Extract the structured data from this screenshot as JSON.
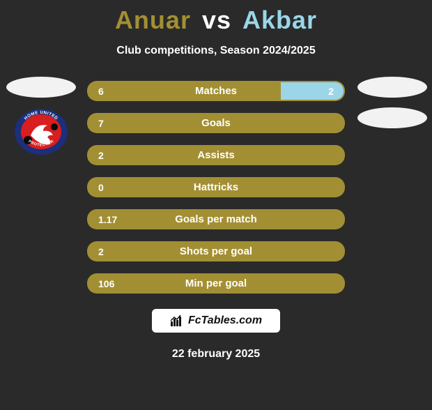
{
  "header": {
    "player1": "Anuar",
    "vs": "vs",
    "player2": "Akbar",
    "player1_color": "#a38f33",
    "player2_color": "#9ad6e8"
  },
  "subtitle": "Club competitions, Season 2024/2025",
  "colors": {
    "p1_fill": "#a38f33",
    "p2_fill": "#9ad6e8",
    "row_border": "#a38f33",
    "background": "#2a2a2a"
  },
  "side_left": {
    "crest": {
      "show": true,
      "top_text": "HOME UNITED",
      "bottom_text": "PROTECTOR",
      "outer_color": "#1b2f7a",
      "inner_color": "#d81e1e",
      "dragon_color": "#ffffff",
      "ball_color": "#0a0a0a"
    }
  },
  "side_right": {
    "crest": {
      "show": false
    }
  },
  "stats": [
    {
      "label": "Matches",
      "left_val": "6",
      "right_val": "2",
      "left_pct": 75,
      "right_pct": 25
    },
    {
      "label": "Goals",
      "left_val": "7",
      "right_val": "",
      "left_pct": 100,
      "right_pct": 0
    },
    {
      "label": "Assists",
      "left_val": "2",
      "right_val": "",
      "left_pct": 100,
      "right_pct": 0
    },
    {
      "label": "Hattricks",
      "left_val": "0",
      "right_val": "",
      "left_pct": 100,
      "right_pct": 0
    },
    {
      "label": "Goals per match",
      "left_val": "1.17",
      "right_val": "",
      "left_pct": 100,
      "right_pct": 0
    },
    {
      "label": "Shots per goal",
      "left_val": "2",
      "right_val": "",
      "left_pct": 100,
      "right_pct": 0
    },
    {
      "label": "Min per goal",
      "left_val": "106",
      "right_val": "",
      "left_pct": 100,
      "right_pct": 0
    }
  ],
  "footer": {
    "brand_label": "FcTables.com",
    "date": "22 february 2025"
  }
}
